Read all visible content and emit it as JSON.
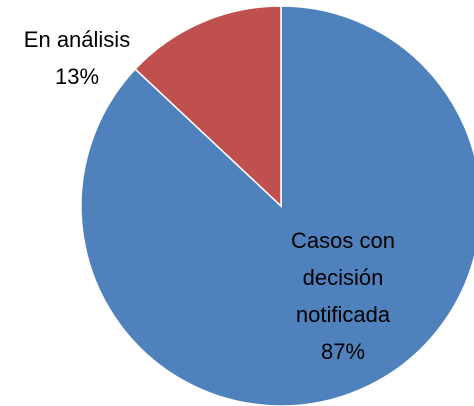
{
  "chart_data": {
    "type": "pie",
    "categories": [
      "Casos con decisión notificada",
      "En análisis"
    ],
    "values": [
      87,
      13
    ],
    "value_labels": [
      "87%",
      "13%"
    ],
    "colors": [
      "#4f81bd",
      "#c0504d"
    ]
  }
}
